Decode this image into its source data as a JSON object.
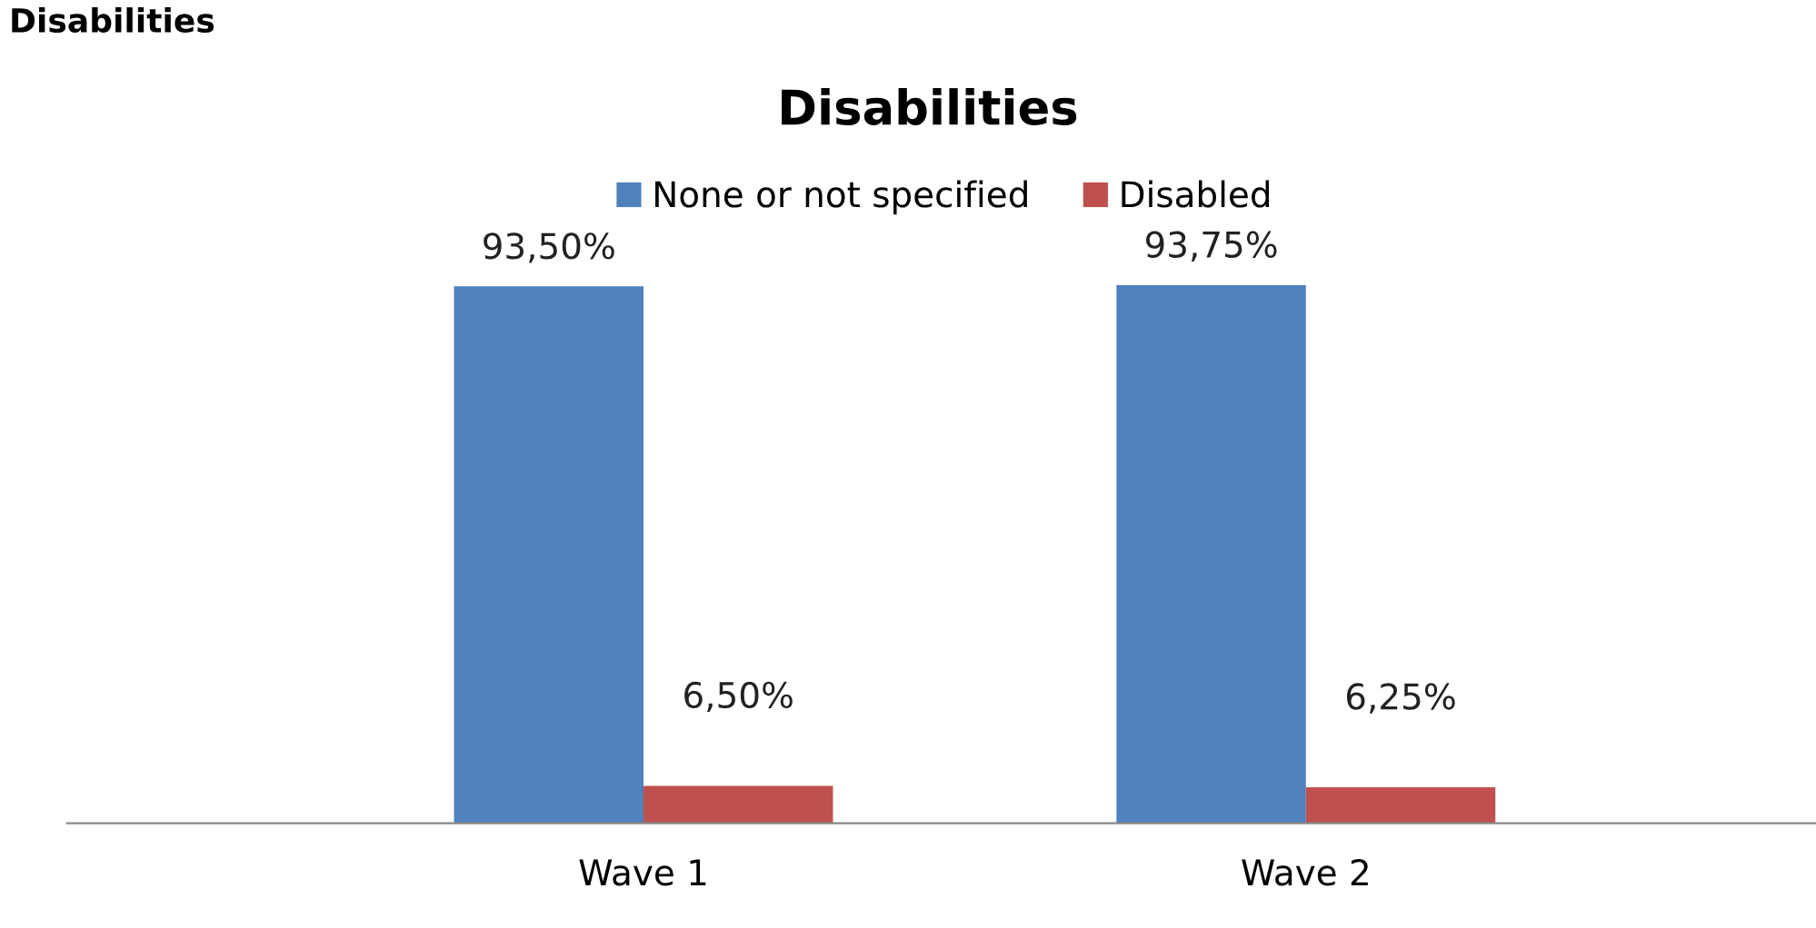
{
  "chart_data": {
    "type": "bar",
    "title": "Disabilities",
    "annotations": [
      "Disabilities"
    ],
    "categories": [
      "Wave 1",
      "Wave 2"
    ],
    "series": [
      {
        "name": "None or not specified",
        "color": "#4f81bd",
        "values": [
          93.5,
          93.75
        ],
        "value_labels": [
          "93,50%",
          "93,75%"
        ]
      },
      {
        "name": "Disabled",
        "color": "#c0504d",
        "values": [
          6.5,
          6.25
        ],
        "value_labels": [
          "6,50%",
          "6,25%"
        ]
      }
    ],
    "legend": "top",
    "grid": false
  }
}
